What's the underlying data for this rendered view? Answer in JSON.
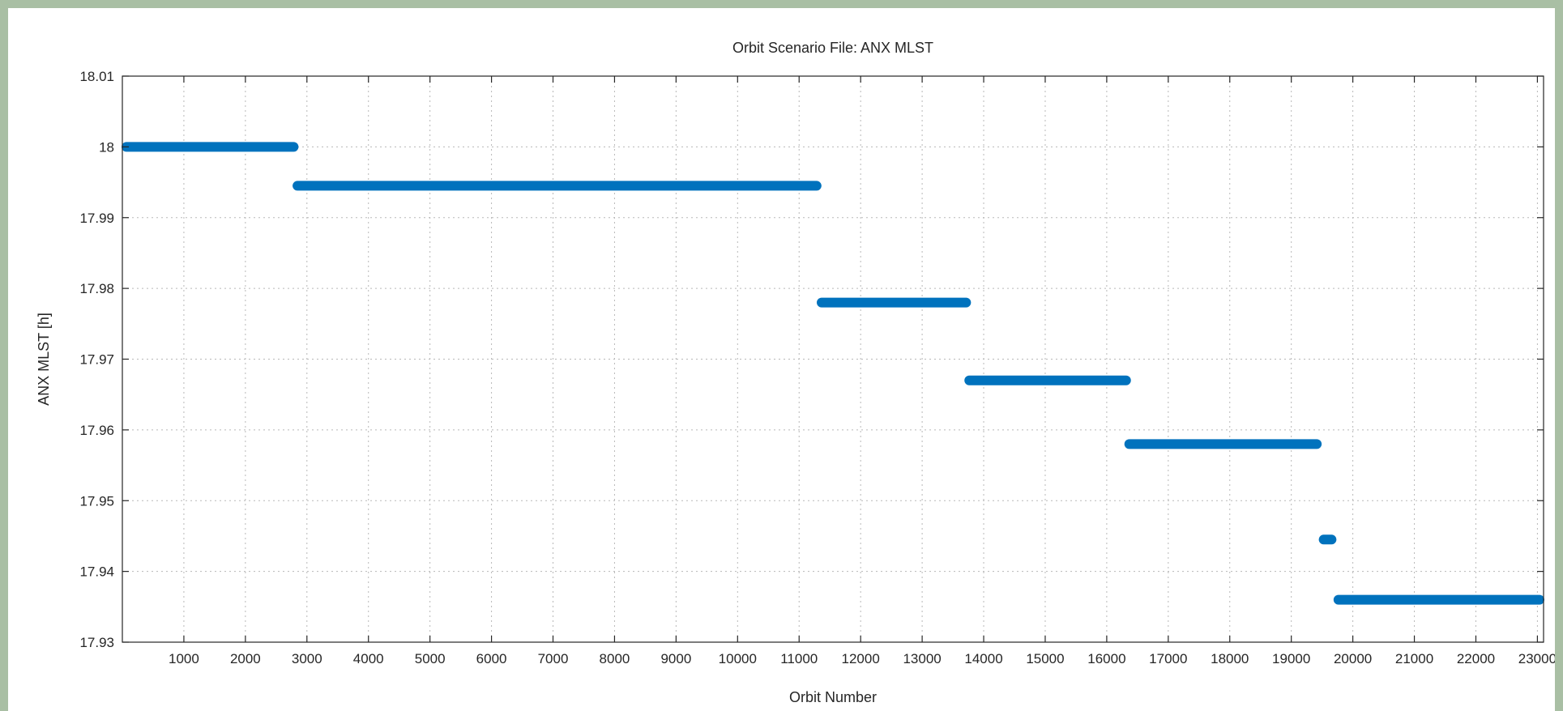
{
  "chart_data": {
    "type": "scatter",
    "title": "Orbit Scenario File: ANX MLST",
    "xlabel": "Orbit Number",
    "ylabel": "ANX MLST [h]",
    "xlim": [
      0,
      23100
    ],
    "ylim": [
      17.93,
      18.01
    ],
    "xticks": [
      1000,
      2000,
      3000,
      4000,
      5000,
      6000,
      7000,
      8000,
      9000,
      10000,
      11000,
      12000,
      13000,
      14000,
      15000,
      16000,
      17000,
      18000,
      19000,
      20000,
      21000,
      22000,
      23000
    ],
    "yticks": [
      17.93,
      17.94,
      17.95,
      17.96,
      17.97,
      17.98,
      17.99,
      18,
      18.01
    ],
    "grid": true,
    "color": "#0072bd",
    "series": [
      {
        "segments": [
          {
            "x": [
              0,
              2850
            ],
            "y": 18.0
          },
          {
            "x": [
              2780,
              11350
            ],
            "y": 17.9945
          },
          {
            "x": [
              11300,
              13780
            ],
            "y": 17.978
          },
          {
            "x": [
              13700,
              16380
            ],
            "y": 17.967
          },
          {
            "x": [
              16300,
              19480
            ],
            "y": 17.958
          },
          {
            "x": [
              19460,
              19720
            ],
            "y": 17.9445
          },
          {
            "x": [
              19700,
              23100
            ],
            "y": 17.936
          }
        ]
      }
    ]
  }
}
